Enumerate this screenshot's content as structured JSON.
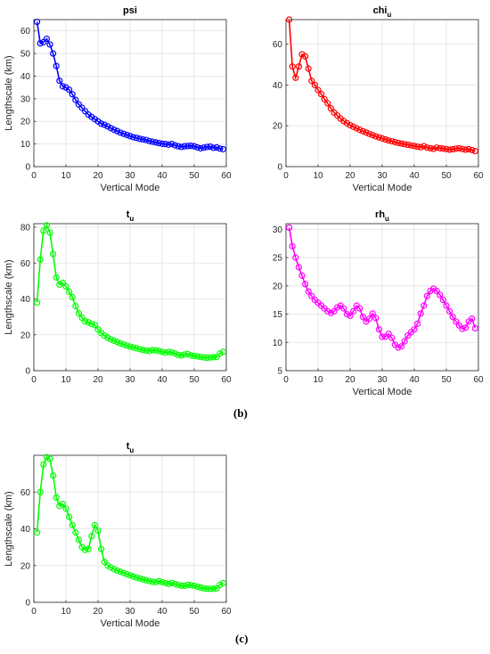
{
  "panel_labels": {
    "b": "(b)",
    "c": "(c)"
  },
  "colors": {
    "psi": "#0000ff",
    "chi": "#ff0000",
    "t": "#00ff00",
    "rh": "#ff00ff",
    "grid": "#e2e2e2",
    "axis": "#262626"
  },
  "chart_data": [
    {
      "type": "line",
      "title": "psi",
      "title_sub": "",
      "xlabel": "Vertical Mode",
      "ylabel": "Lengthscale (km)",
      "xlim": [
        0,
        60
      ],
      "ylim": [
        0,
        65
      ],
      "xticks": [
        0,
        10,
        20,
        30,
        40,
        50,
        60
      ],
      "yticks": [
        0,
        10,
        20,
        30,
        40,
        50,
        60
      ],
      "grid": true,
      "series": [
        {
          "color": "#0000ff",
          "x": [
            1,
            2,
            3,
            4,
            5,
            6,
            7,
            8,
            9,
            10,
            11,
            12,
            13,
            14,
            15,
            16,
            17,
            18,
            19,
            20,
            21,
            22,
            23,
            24,
            25,
            26,
            27,
            28,
            29,
            30,
            31,
            32,
            33,
            34,
            35,
            36,
            37,
            38,
            39,
            40,
            41,
            42,
            43,
            44,
            45,
            46,
            47,
            48,
            49,
            50,
            51,
            52,
            53,
            54,
            55,
            56,
            57,
            58,
            59
          ],
          "y": [
            64,
            54.5,
            55,
            56.5,
            54,
            50,
            44.5,
            38,
            35.5,
            35,
            34,
            32,
            29.5,
            27.5,
            26,
            24.5,
            23,
            22,
            21,
            20,
            19,
            18.5,
            17.8,
            17,
            16.3,
            15.7,
            15,
            14.5,
            14,
            13.5,
            13,
            12.7,
            12.3,
            12,
            11.8,
            11.3,
            11,
            10.7,
            10.4,
            10.1,
            10,
            9.7,
            10,
            9.4,
            9,
            8.7,
            9,
            9.1,
            9.2,
            9,
            8.5,
            8.1,
            8.4,
            8.7,
            8.8,
            8.3,
            8.5,
            8,
            7.7
          ]
        }
      ]
    },
    {
      "type": "line",
      "title": "chi",
      "title_sub": "u",
      "xlabel": "Vertical Mode",
      "ylabel": "",
      "xlim": [
        0,
        60
      ],
      "ylim": [
        0,
        72
      ],
      "xticks": [
        0,
        10,
        20,
        30,
        40,
        50,
        60
      ],
      "yticks": [
        0,
        20,
        40,
        60
      ],
      "grid": true,
      "series": [
        {
          "color": "#ff0000",
          "x": [
            1,
            2,
            3,
            4,
            5,
            6,
            7,
            8,
            9,
            10,
            11,
            12,
            13,
            14,
            15,
            16,
            17,
            18,
            19,
            20,
            21,
            22,
            23,
            24,
            25,
            26,
            27,
            28,
            29,
            30,
            31,
            32,
            33,
            34,
            35,
            36,
            37,
            38,
            39,
            40,
            41,
            42,
            43,
            44,
            45,
            46,
            47,
            48,
            49,
            50,
            51,
            52,
            53,
            54,
            55,
            56,
            57,
            58,
            59
          ],
          "y": [
            72,
            49,
            43.5,
            49,
            55,
            54,
            48,
            42,
            40,
            37.5,
            35.5,
            33,
            31,
            28.5,
            26.5,
            25,
            23.5,
            22.3,
            21.3,
            20.3,
            19.5,
            18.8,
            18,
            17.3,
            16.7,
            16,
            15.4,
            14.8,
            14.3,
            13.8,
            13.3,
            12.8,
            12.4,
            12,
            11.6,
            11.3,
            11,
            10.7,
            10.4,
            10.1,
            9.8,
            9.5,
            10,
            9.3,
            9,
            8.7,
            9.3,
            9,
            8.8,
            8.6,
            8.3,
            8.5,
            8.8,
            9,
            8.6,
            8.3,
            8.5,
            8.1,
            7.6
          ]
        }
      ]
    },
    {
      "type": "line",
      "title": "t",
      "title_sub": "u",
      "xlabel": "",
      "ylabel": "Lengthscale (km)",
      "xlim": [
        0,
        60
      ],
      "ylim": [
        0,
        82
      ],
      "xticks": [
        0,
        10,
        20,
        30,
        40,
        50,
        60
      ],
      "yticks": [
        0,
        20,
        40,
        60,
        80
      ],
      "grid": true,
      "series": [
        {
          "color": "#00ff00",
          "x": [
            1,
            2,
            3,
            4,
            5,
            6,
            7,
            8,
            9,
            10,
            11,
            12,
            13,
            14,
            15,
            16,
            17,
            18,
            19,
            20,
            21,
            22,
            23,
            24,
            25,
            26,
            27,
            28,
            29,
            30,
            31,
            32,
            33,
            34,
            35,
            36,
            37,
            38,
            39,
            40,
            41,
            42,
            43,
            44,
            45,
            46,
            47,
            48,
            49,
            50,
            51,
            52,
            53,
            54,
            55,
            56,
            57,
            58,
            59
          ],
          "y": [
            38,
            62,
            78,
            81,
            77,
            65,
            52,
            48,
            49,
            47,
            44,
            41,
            36,
            32,
            29.5,
            27.5,
            27,
            26,
            25.5,
            23,
            21,
            19.5,
            18.5,
            17.5,
            16.7,
            16,
            15.2,
            14.6,
            14,
            13.4,
            13,
            12.5,
            12,
            11.6,
            11.2,
            11,
            11.5,
            11.3,
            11,
            10.5,
            10,
            10.5,
            10.2,
            9.5,
            8.8,
            8.5,
            9,
            9.3,
            8.5,
            8.2,
            8,
            7.6,
            7.4,
            7.2,
            7.3,
            7.5,
            7.6,
            9.5,
            10.5
          ]
        }
      ]
    },
    {
      "type": "line",
      "title": "rh",
      "title_sub": "u",
      "xlabel": "Vertical Mode",
      "ylabel": "",
      "xlim": [
        0,
        60
      ],
      "ylim": [
        5,
        31
      ],
      "xticks": [
        0,
        10,
        20,
        30,
        40,
        50,
        60
      ],
      "yticks": [
        5,
        10,
        15,
        20,
        25,
        30
      ],
      "grid": true,
      "series": [
        {
          "color": "#ff00ff",
          "x": [
            1,
            2,
            3,
            4,
            5,
            6,
            7,
            8,
            9,
            10,
            11,
            12,
            13,
            14,
            15,
            16,
            17,
            18,
            19,
            20,
            21,
            22,
            23,
            24,
            25,
            26,
            27,
            28,
            29,
            30,
            31,
            32,
            33,
            34,
            35,
            36,
            37,
            38,
            39,
            40,
            41,
            42,
            43,
            44,
            45,
            46,
            47,
            48,
            49,
            50,
            51,
            52,
            53,
            54,
            55,
            56,
            57,
            58,
            59
          ],
          "y": [
            30.3,
            27,
            25,
            23.3,
            21.8,
            20.3,
            19,
            18.2,
            17.5,
            17,
            16.5,
            16,
            15.5,
            15.2,
            15.5,
            16.2,
            16.5,
            16,
            15,
            14.7,
            15.5,
            16.5,
            16,
            14.5,
            13.7,
            14.2,
            15.1,
            14.3,
            12.3,
            11,
            11,
            11.5,
            10.8,
            9.6,
            9.1,
            9.3,
            10.2,
            11.2,
            11.8,
            12.3,
            13.3,
            15.1,
            16.5,
            18.2,
            19.1,
            19.5,
            19.1,
            18.4,
            17.5,
            16.5,
            15.5,
            14.5,
            13.7,
            13,
            12.4,
            12.6,
            13.7,
            14.2,
            12.5
          ]
        }
      ]
    },
    {
      "type": "line",
      "title": "t",
      "title_sub": "u",
      "xlabel": "Vertical Mode",
      "ylabel": "Lengthscale (km)",
      "xlim": [
        0,
        60
      ],
      "ylim": [
        0,
        80
      ],
      "xticks": [
        0,
        10,
        20,
        30,
        40,
        50,
        60
      ],
      "yticks": [
        0,
        20,
        40,
        60
      ],
      "grid": true,
      "series": [
        {
          "color": "#00ff00",
          "x": [
            1,
            2,
            3,
            4,
            5,
            6,
            7,
            8,
            9,
            10,
            11,
            12,
            13,
            14,
            15,
            16,
            17,
            18,
            19,
            20,
            21,
            22,
            23,
            24,
            25,
            26,
            27,
            28,
            29,
            30,
            31,
            32,
            33,
            34,
            35,
            36,
            37,
            38,
            39,
            40,
            41,
            42,
            43,
            44,
            45,
            46,
            47,
            48,
            49,
            50,
            51,
            52,
            53,
            54,
            55,
            56,
            57,
            58,
            59
          ],
          "y": [
            38,
            60,
            75,
            79,
            78,
            69,
            57,
            52.5,
            53.5,
            51,
            46.5,
            42,
            38,
            34,
            30,
            28.5,
            29,
            36,
            42,
            39,
            29,
            22,
            20,
            19,
            18,
            17.3,
            16.6,
            16,
            15.3,
            14.7,
            14,
            13.5,
            13,
            12.5,
            12,
            11.6,
            11.2,
            11,
            11.5,
            11,
            10.5,
            10,
            10.5,
            10,
            9.5,
            9,
            9,
            9.5,
            9.3,
            9,
            8.5,
            8,
            7.6,
            7.4,
            7.3,
            7.4,
            7.6,
            9.5,
            10.5
          ]
        }
      ]
    }
  ]
}
